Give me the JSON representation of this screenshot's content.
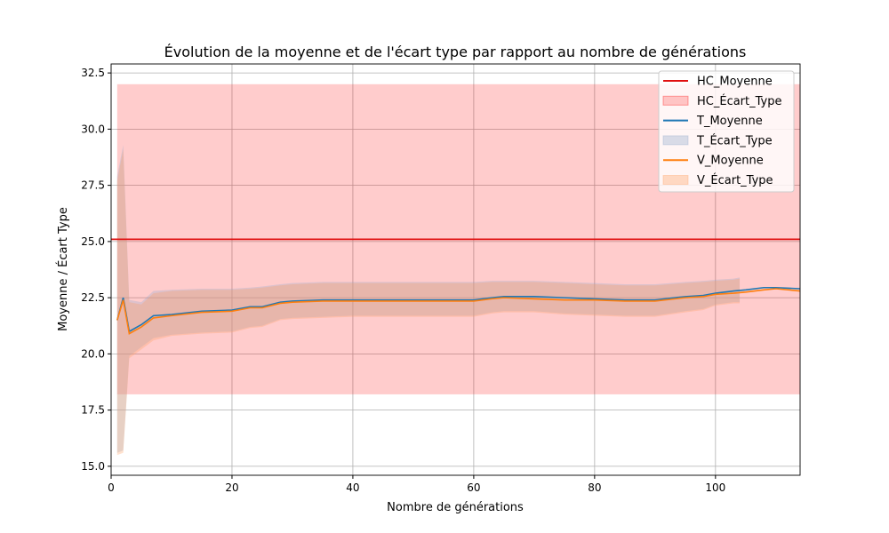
{
  "chart_data": {
    "type": "line",
    "title": "Évolution de la moyenne et de l'écart type par rapport au nombre de générations",
    "xlabel": "Nombre de générations",
    "ylabel": "Moyenne / Écart Type",
    "xlim": [
      0,
      114
    ],
    "ylim": [
      14.6,
      32.9
    ],
    "xticks": [
      0,
      20,
      40,
      60,
      80,
      100
    ],
    "xtick_labels": [
      "0",
      "20",
      "40",
      "60",
      "80",
      "100"
    ],
    "yticks": [
      15.0,
      17.5,
      20.0,
      22.5,
      25.0,
      27.5,
      30.0,
      32.5
    ],
    "ytick_labels": [
      "15.0",
      "17.5",
      "20.0",
      "22.5",
      "25.0",
      "27.5",
      "30.0",
      "32.5"
    ],
    "grid": true,
    "legend_position": "top-right",
    "legend": [
      {
        "label": "HC_Moyenne",
        "kind": "line",
        "color": "#e01010"
      },
      {
        "label": "HC_Écart_Type",
        "kind": "band",
        "color": "#ffb3b3"
      },
      {
        "label": "T_Moyenne",
        "kind": "line",
        "color": "#1f77b4"
      },
      {
        "label": "T_Écart_Type",
        "kind": "band",
        "color": "#b0c4de"
      },
      {
        "label": "V_Moyenne",
        "kind": "line",
        "color": "#ff7f0e"
      },
      {
        "label": "V_Écart_Type",
        "kind": "band",
        "color": "#ffc9a0"
      }
    ],
    "hc": {
      "mean": 25.1,
      "std_low": 18.2,
      "std_high": 32.0,
      "x_start": 1,
      "x_end": 114
    },
    "t_mean": {
      "x": [
        1,
        2,
        3,
        5,
        7,
        10,
        15,
        20,
        23,
        25,
        28,
        30,
        35,
        40,
        50,
        60,
        63,
        65,
        70,
        75,
        80,
        85,
        90,
        95,
        98,
        100,
        103,
        105,
        108,
        110,
        114
      ],
      "y": [
        21.5,
        22.5,
        21.0,
        21.3,
        21.7,
        21.75,
        21.9,
        21.95,
        22.1,
        22.1,
        22.3,
        22.35,
        22.4,
        22.4,
        22.4,
        22.4,
        22.5,
        22.55,
        22.55,
        22.5,
        22.45,
        22.4,
        22.4,
        22.55,
        22.6,
        22.7,
        22.8,
        22.85,
        22.95,
        22.95,
        22.9
      ]
    },
    "t_std": {
      "x": [
        1,
        2,
        3,
        5,
        7,
        10,
        15,
        20,
        23,
        25,
        28,
        30,
        35,
        40,
        50,
        60,
        63,
        65,
        70,
        75,
        80,
        85,
        90,
        95,
        98,
        100,
        103,
        104
      ],
      "low": [
        15.6,
        15.7,
        19.9,
        20.3,
        20.7,
        20.85,
        20.95,
        21.0,
        21.2,
        21.25,
        21.55,
        21.6,
        21.65,
        21.7,
        21.7,
        21.7,
        21.85,
        21.9,
        21.9,
        21.8,
        21.75,
        21.7,
        21.7,
        21.9,
        22.0,
        22.2,
        22.3,
        22.3
      ],
      "high": [
        27.9,
        29.3,
        22.4,
        22.3,
        22.8,
        22.85,
        22.9,
        22.9,
        22.95,
        23.0,
        23.1,
        23.15,
        23.2,
        23.2,
        23.2,
        23.2,
        23.25,
        23.25,
        23.25,
        23.2,
        23.15,
        23.1,
        23.1,
        23.2,
        23.25,
        23.3,
        23.35,
        23.4
      ]
    },
    "v_mean": {
      "x": [
        1,
        2,
        3,
        5,
        7,
        10,
        15,
        20,
        23,
        25,
        28,
        30,
        35,
        40,
        50,
        60,
        63,
        65,
        70,
        75,
        80,
        85,
        90,
        95,
        98,
        100,
        103,
        105,
        108,
        110,
        114
      ],
      "y": [
        21.5,
        22.4,
        20.9,
        21.2,
        21.6,
        21.7,
        21.85,
        21.9,
        22.05,
        22.05,
        22.25,
        22.3,
        22.35,
        22.35,
        22.35,
        22.35,
        22.45,
        22.5,
        22.45,
        22.4,
        22.4,
        22.35,
        22.35,
        22.5,
        22.55,
        22.65,
        22.7,
        22.75,
        22.85,
        22.9,
        22.8
      ]
    },
    "v_std": {
      "x": [
        1,
        2,
        3,
        5,
        7,
        10,
        15,
        20,
        23,
        25,
        28,
        30,
        35,
        40,
        50,
        60,
        63,
        65,
        70,
        75,
        80,
        85,
        90,
        95,
        98,
        100,
        103,
        104
      ],
      "low": [
        15.5,
        15.6,
        19.8,
        20.2,
        20.6,
        20.8,
        20.9,
        20.95,
        21.15,
        21.2,
        21.5,
        21.55,
        21.6,
        21.65,
        21.65,
        21.65,
        21.8,
        21.85,
        21.85,
        21.75,
        21.7,
        21.65,
        21.65,
        21.85,
        21.95,
        22.15,
        22.25,
        22.25
      ],
      "high": [
        27.7,
        29.1,
        22.3,
        22.2,
        22.7,
        22.8,
        22.85,
        22.85,
        22.9,
        22.95,
        23.05,
        23.1,
        23.15,
        23.15,
        23.15,
        23.15,
        23.2,
        23.2,
        23.2,
        23.15,
        23.1,
        23.05,
        23.05,
        23.15,
        23.2,
        23.25,
        23.3,
        23.35
      ]
    }
  }
}
